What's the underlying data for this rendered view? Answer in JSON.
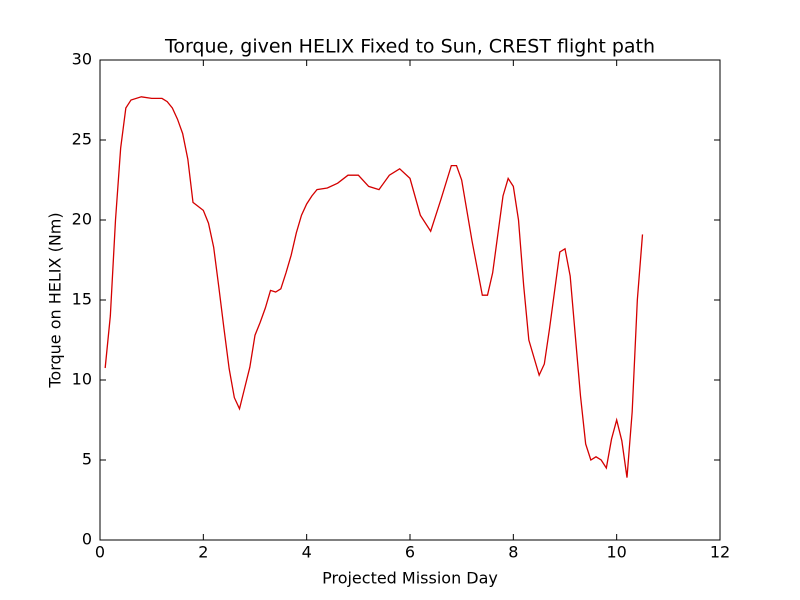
{
  "chart_data": {
    "type": "line",
    "title": "Torque, given HELIX Fixed to Sun, CREST flight path",
    "xlabel": "Projected Mission Day",
    "ylabel": "Torque on HELIX (Nm)",
    "xlim": [
      0,
      12
    ],
    "xticks": [
      0,
      2,
      4,
      6,
      8,
      10,
      12
    ],
    "ylim": [
      0,
      30
    ],
    "yticks": [
      0,
      5,
      10,
      15,
      20,
      25,
      30
    ],
    "grid": false,
    "x": [
      0.1,
      0.2,
      0.3,
      0.4,
      0.5,
      0.6,
      0.8,
      1.0,
      1.2,
      1.3,
      1.4,
      1.5,
      1.6,
      1.7,
      1.8,
      2.0,
      2.1,
      2.2,
      2.3,
      2.4,
      2.5,
      2.6,
      2.7,
      2.8,
      2.9,
      3.0,
      3.1,
      3.2,
      3.3,
      3.4,
      3.5,
      3.6,
      3.7,
      3.8,
      3.9,
      4.0,
      4.1,
      4.2,
      4.4,
      4.6,
      4.8,
      5.0,
      5.2,
      5.4,
      5.6,
      5.8,
      6.0,
      6.2,
      6.4,
      6.6,
      6.8,
      6.9,
      7.0,
      7.2,
      7.4,
      7.5,
      7.6,
      7.8,
      7.9,
      8.0,
      8.1,
      8.2,
      8.3,
      8.5,
      8.6,
      8.7,
      8.9,
      9.0,
      9.1,
      9.3,
      9.4,
      9.5,
      9.6,
      9.7,
      9.8,
      9.9,
      10.0,
      10.1,
      10.2,
      10.3,
      10.4,
      10.5
    ],
    "series": [
      {
        "name": "Torque",
        "color": "#d40000",
        "values": [
          10.75,
          14,
          20,
          24.5,
          27,
          27.5,
          27.7,
          27.6,
          27.6,
          27.4,
          27,
          26.3,
          25.4,
          23.8,
          21.1,
          20.6,
          19.8,
          18.3,
          15.8,
          13.2,
          10.7,
          8.9,
          8.2,
          9.5,
          10.8,
          12.8,
          13.6,
          14.5,
          15.6,
          15.5,
          15.7,
          16.7,
          17.8,
          19.2,
          20.3,
          21,
          21.5,
          21.9,
          22.0,
          22.3,
          22.8,
          22.8,
          22.1,
          21.9,
          22.8,
          23.2,
          22.6,
          20.3,
          19.3,
          21.3,
          23.4,
          23.4,
          22.5,
          18.7,
          15.3,
          15.3,
          16.7,
          21.5,
          22.6,
          22.1,
          20,
          15.9,
          12.5,
          10.3,
          11,
          13.2,
          18,
          18.2,
          16.5,
          9,
          6,
          5,
          5.2,
          5,
          4.5,
          6.3,
          7.5,
          6.2,
          3.9,
          8,
          15,
          19.1
        ]
      }
    ]
  }
}
